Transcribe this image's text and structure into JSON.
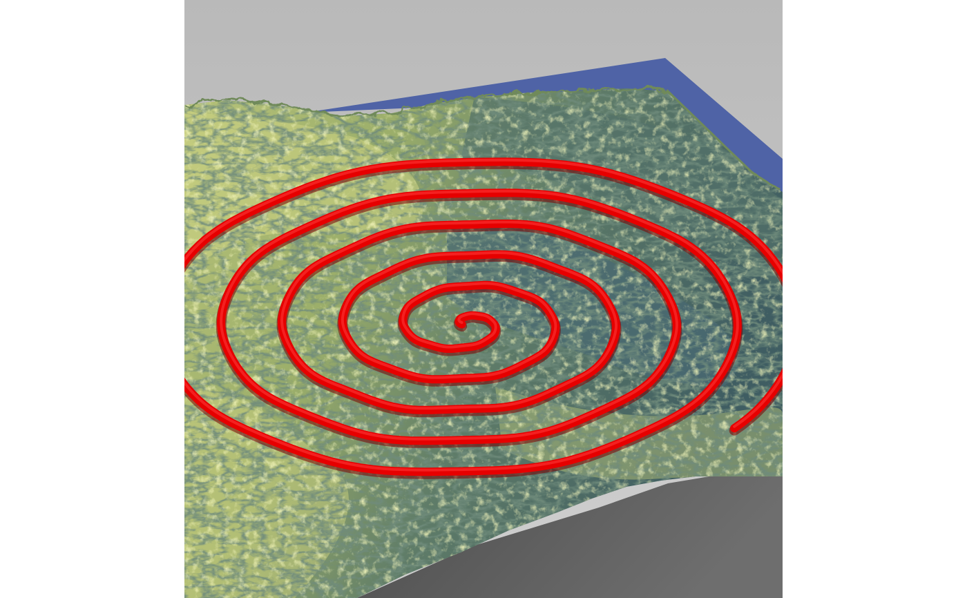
{
  "scene": {
    "colors": {
      "background": "#ffffff",
      "sky": "#bfbfbf",
      "water": "#4f63a6",
      "base_shadow": "#5c5c5c",
      "terrain_low": "#3c5a5c",
      "terrain_mid": "#7f9a5a",
      "terrain_high": "#d6db86",
      "path": "#e60000",
      "path_highlight": "#ff3a3a",
      "path_shadow": "#7a0000"
    },
    "spiral": {
      "turns": 5.6
    }
  }
}
